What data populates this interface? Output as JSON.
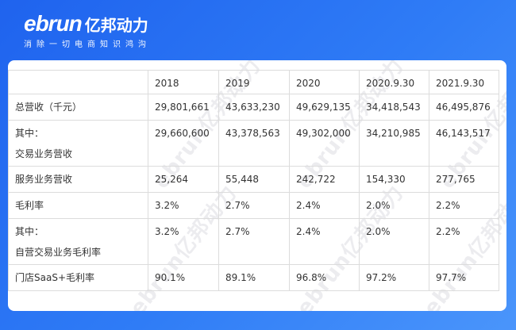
{
  "brand": {
    "logo_latin": "ebrun",
    "logo_cn": "亿邦动力",
    "slogan": "消除一切电商知识鸿沟"
  },
  "watermark_text": "ebrun亿邦动力",
  "table": {
    "headers": [
      "",
      "2018",
      "2019",
      "2020",
      "2020.9.30",
      "2021.9.30"
    ],
    "rows": [
      {
        "label": [
          "总营收（千元）"
        ],
        "values": [
          "29,801,661",
          "43,633,230",
          "49,629,135",
          "34,418,543",
          "46,495,876"
        ]
      },
      {
        "label": [
          "其中：",
          "交易业务营收"
        ],
        "values": [
          "29,660,600",
          "43,378,563",
          "49,302,000",
          "34,210,985",
          "46,143,517"
        ]
      },
      {
        "label": [
          "服务业务营收"
        ],
        "values": [
          "25,264",
          "55,448",
          "242,722",
          "154,330",
          "277,765"
        ]
      },
      {
        "label": [
          "毛利率"
        ],
        "values": [
          "3.2%",
          "2.7%",
          "2.4%",
          "2.0%",
          "2.2%"
        ]
      },
      {
        "label": [
          "其中：",
          "自营交易业务毛利率"
        ],
        "values": [
          "3.2%",
          "2.7%",
          "2.4%",
          "2.0%",
          "2.2%"
        ]
      },
      {
        "label": [
          "门店SaaS+毛利率"
        ],
        "values": [
          "90.1%",
          "89.1%",
          "96.8%",
          "97.2%",
          "97.7%"
        ]
      }
    ]
  }
}
